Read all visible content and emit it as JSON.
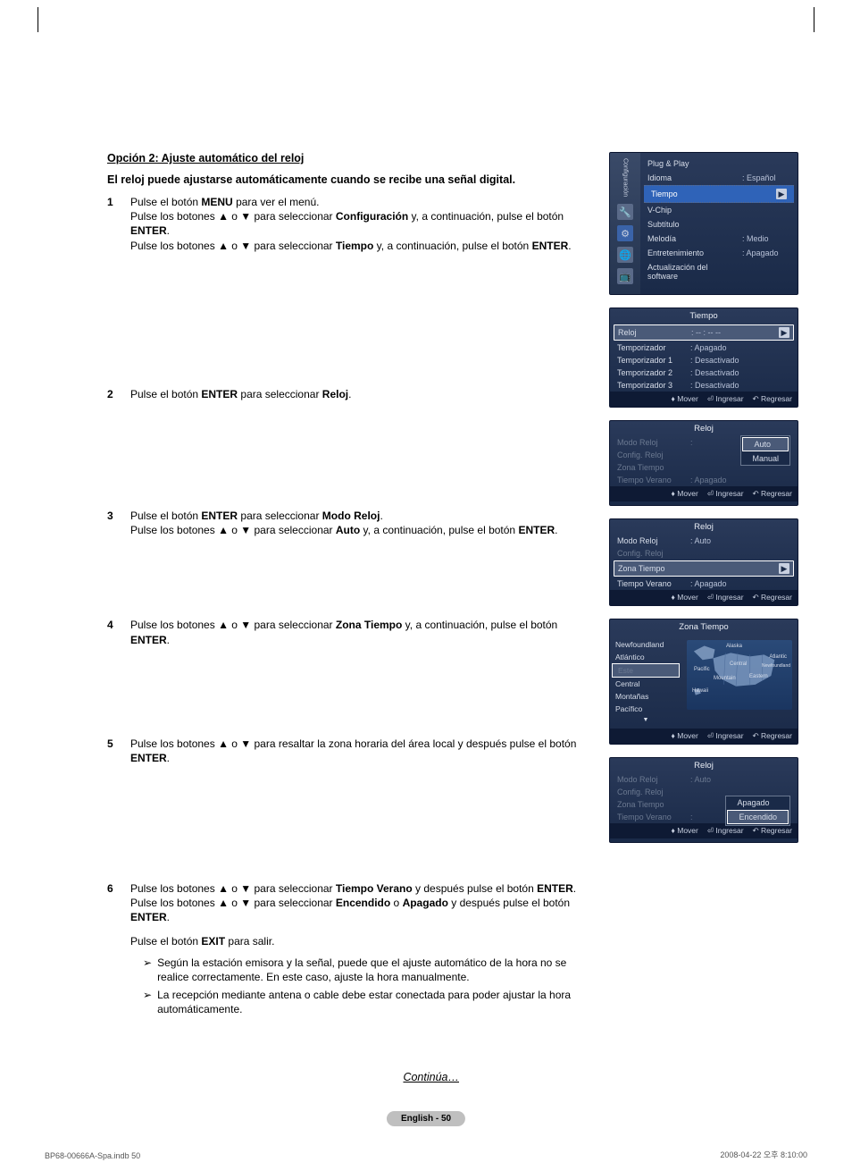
{
  "header": {
    "option_title": "Opción 2: Ajuste automático del reloj",
    "intro": "El reloj puede ajustarse automáticamente cuando se recibe una señal digital."
  },
  "steps": [
    {
      "num": "1",
      "html": "Pulse el botón <b>MENU</b> para ver el menú.<br>Pulse los botones ▲ o ▼ para seleccionar <b>Configuración</b> y, a continuación, pulse el botón <b>ENTER</b>.<br>Pulse los botones ▲ o ▼ para seleccionar <b>Tiempo</b> y, a continuación, pulse el botón <b>ENTER</b>."
    },
    {
      "num": "2",
      "html": "Pulse el botón <b>ENTER</b> para seleccionar <b>Reloj</b>."
    },
    {
      "num": "3",
      "html": "Pulse el botón <b>ENTER</b> para seleccionar <b>Modo Reloj</b>.<br>Pulse los botones ▲ o ▼ para seleccionar <b>Auto</b> y, a continuación, pulse el botón <b>ENTER</b>."
    },
    {
      "num": "4",
      "html": "Pulse los botones ▲ o ▼ para seleccionar <b>Zona Tiempo</b> y, a continuación, pulse el botón <b>ENTER</b>."
    },
    {
      "num": "5",
      "html": "Pulse los botones ▲ o ▼ para resaltar la zona horaria del área local y después pulse el botón <b>ENTER</b>."
    },
    {
      "num": "6",
      "html": "Pulse los botones ▲ o ▼ para seleccionar <b>Tiempo Verano</b> y después pulse el botón <b>ENTER</b>.<br>Pulse los botones ▲ o ▼ para seleccionar <b>Encendido</b> o <b>Apagado</b> y después pulse el botón <b>ENTER</b>.",
      "exit": "Pulse el botón <b>EXIT</b> para salir.",
      "notes": [
        "Según la estación emisora y la señal, puede que el ajuste automático de la hora no se realice correctamente. En este caso, ajuste la hora manualmente.",
        "La recepción mediante antena o cable debe estar conectada para poder ajustar la hora automáticamente."
      ]
    }
  ],
  "continua": "Continúa…",
  "page_number": "English - 50",
  "footer": {
    "left": "BP68-00666A-Spa.indb   50",
    "right": "2008-04-22   오후 8:10:00"
  },
  "osd_colors": {
    "bg_top": "#2a3a5a",
    "bg_bottom": "#1a2a48",
    "highlight": "#2f63b8",
    "text": "#d8deea",
    "dim": "#6a7890",
    "foot_bg": "#0e1a34"
  },
  "panel1": {
    "sidebar_label": "Configuración",
    "items": [
      {
        "label": "Plug & Play",
        "val": ""
      },
      {
        "label": "Idioma",
        "val": ": Español"
      },
      {
        "label": "Tiempo",
        "val": "",
        "hl": true
      },
      {
        "label": "V-Chip",
        "val": ""
      },
      {
        "label": "Subtítulo",
        "val": ""
      },
      {
        "label": "Melodía",
        "val": ": Medio"
      },
      {
        "label": "Entretenimiento",
        "val": ": Apagado"
      },
      {
        "label": "Actualización del software",
        "val": ""
      }
    ]
  },
  "panel2": {
    "title": "Tiempo",
    "rows": [
      {
        "label": "Reloj",
        "val": ": -- : -- --",
        "sel": true,
        "arrow": true
      },
      {
        "label": "Temporizador",
        "val": ": Apagado"
      },
      {
        "label": "Temporizador 1",
        "val": ": Desactivado"
      },
      {
        "label": "Temporizador 2",
        "val": ": Desactivado"
      },
      {
        "label": "Temporizador 3",
        "val": ": Desactivado"
      }
    ]
  },
  "panel3": {
    "title": "Reloj",
    "rows": [
      {
        "label": "Modo Reloj",
        "val": ":",
        "dim": true
      },
      {
        "label": "Config. Reloj",
        "val": "",
        "dim": true
      },
      {
        "label": "Zona Tiempo",
        "val": "",
        "dim": true
      },
      {
        "label": "Tiempo Verano",
        "val": ": Apagado",
        "dim": true
      }
    ],
    "dropdown": [
      "Auto",
      "Manual"
    ],
    "dd_sel": 0
  },
  "panel4": {
    "title": "Reloj",
    "rows": [
      {
        "label": "Modo Reloj",
        "val": ": Auto"
      },
      {
        "label": "Config. Reloj",
        "val": "",
        "dim": true
      },
      {
        "label": "Zona Tiempo",
        "val": "",
        "sel": true,
        "arrow": true
      },
      {
        "label": "Tiempo Verano",
        "val": ": Apagado"
      }
    ]
  },
  "panel5": {
    "title": "Zona Tiempo",
    "list": [
      "Newfoundland",
      "Atlántico",
      "Este",
      "Central",
      "Montañas",
      "Pacífico"
    ],
    "sel_index": 2,
    "map_labels": [
      "Alaska",
      "Pacific",
      "Mountain",
      "Central",
      "Eastern",
      "Atlantic",
      "Newfoundland",
      "Hawaii"
    ]
  },
  "panel6": {
    "title": "Reloj",
    "rows": [
      {
        "label": "Modo Reloj",
        "val": ": Auto",
        "dim": true
      },
      {
        "label": "Config. Reloj",
        "val": "",
        "dim": true
      },
      {
        "label": "Zona Tiempo",
        "val": "",
        "dim": true
      },
      {
        "label": "Tiempo Verano",
        "val": ":",
        "dim": true
      }
    ],
    "dropdown": [
      "Apagado",
      "Encendido"
    ],
    "dd_sel": 1
  },
  "foot_labels": {
    "mover": "Mover",
    "ingresar": "Ingresar",
    "regresar": "Regresar"
  }
}
